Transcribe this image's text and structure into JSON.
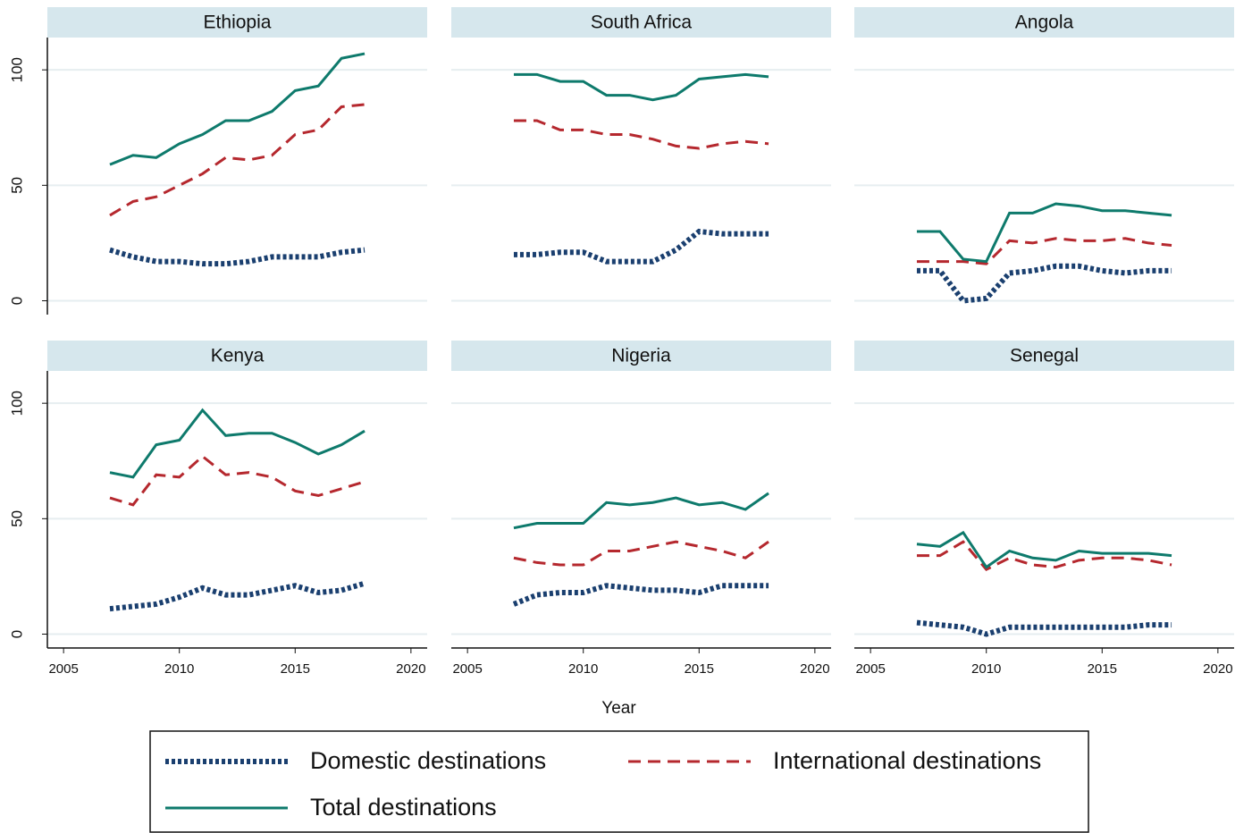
{
  "chart_data": [
    {
      "type": "line",
      "title": "Ethiopia",
      "x": [
        2007,
        2008,
        2009,
        2010,
        2011,
        2012,
        2013,
        2014,
        2015,
        2016,
        2017,
        2018
      ],
      "xlim": [
        2004.3,
        2020.7
      ],
      "xticks": [
        2005,
        2010,
        2015,
        2020
      ],
      "ylim": [
        -6,
        114
      ],
      "yticks": [
        0,
        50,
        100
      ],
      "grid": true,
      "series": [
        {
          "name": "Domestic destinations",
          "color": "#1a3f6f",
          "style": "dotted",
          "values": [
            22,
            19,
            17,
            17,
            16,
            16,
            17,
            19,
            19,
            19,
            21,
            22
          ]
        },
        {
          "name": "International destinations",
          "color": "#b5282e",
          "style": "dashed",
          "values": [
            37,
            43,
            45,
            50,
            55,
            62,
            61,
            63,
            72,
            74,
            84,
            85
          ]
        },
        {
          "name": "Total destinations",
          "color": "#0e7a6c",
          "style": "solid",
          "values": [
            59,
            63,
            62,
            68,
            72,
            78,
            78,
            82,
            91,
            93,
            105,
            107
          ]
        }
      ]
    },
    {
      "type": "line",
      "title": "South Africa",
      "x": [
        2007,
        2008,
        2009,
        2010,
        2011,
        2012,
        2013,
        2014,
        2015,
        2016,
        2017,
        2018
      ],
      "xlim": [
        2004.3,
        2020.7
      ],
      "xticks": [
        2005,
        2010,
        2015,
        2020
      ],
      "ylim": [
        -6,
        114
      ],
      "yticks": [
        0,
        50,
        100
      ],
      "grid": true,
      "series": [
        {
          "name": "Domestic destinations",
          "color": "#1a3f6f",
          "style": "dotted",
          "values": [
            20,
            20,
            21,
            21,
            17,
            17,
            17,
            22,
            30,
            29,
            29,
            29
          ]
        },
        {
          "name": "International destinations",
          "color": "#b5282e",
          "style": "dashed",
          "values": [
            78,
            78,
            74,
            74,
            72,
            72,
            70,
            67,
            66,
            68,
            69,
            68
          ]
        },
        {
          "name": "Total destinations",
          "color": "#0e7a6c",
          "style": "solid",
          "values": [
            98,
            98,
            95,
            95,
            89,
            89,
            87,
            89,
            96,
            97,
            98,
            97
          ]
        }
      ]
    },
    {
      "type": "line",
      "title": "Angola",
      "x": [
        2007,
        2008,
        2009,
        2010,
        2011,
        2012,
        2013,
        2014,
        2015,
        2016,
        2017,
        2018
      ],
      "xlim": [
        2004.3,
        2020.7
      ],
      "xticks": [
        2005,
        2010,
        2015,
        2020
      ],
      "ylim": [
        -6,
        114
      ],
      "yticks": [
        0,
        50,
        100
      ],
      "grid": true,
      "series": [
        {
          "name": "Domestic destinations",
          "color": "#1a3f6f",
          "style": "dotted",
          "values": [
            13,
            13,
            0,
            1,
            12,
            13,
            15,
            15,
            13,
            12,
            13,
            13
          ]
        },
        {
          "name": "International destinations",
          "color": "#b5282e",
          "style": "dashed",
          "values": [
            17,
            17,
            17,
            16,
            26,
            25,
            27,
            26,
            26,
            27,
            25,
            24
          ]
        },
        {
          "name": "Total destinations",
          "color": "#0e7a6c",
          "style": "solid",
          "values": [
            30,
            30,
            18,
            17,
            38,
            38,
            42,
            41,
            39,
            39,
            38,
            37
          ]
        }
      ]
    },
    {
      "type": "line",
      "title": "Kenya",
      "x": [
        2007,
        2008,
        2009,
        2010,
        2011,
        2012,
        2013,
        2014,
        2015,
        2016,
        2017,
        2018
      ],
      "xlim": [
        2004.3,
        2020.7
      ],
      "xticks": [
        2005,
        2010,
        2015,
        2020
      ],
      "ylim": [
        -6,
        114
      ],
      "yticks": [
        0,
        50,
        100
      ],
      "grid": true,
      "series": [
        {
          "name": "Domestic destinations",
          "color": "#1a3f6f",
          "style": "dotted",
          "values": [
            11,
            12,
            13,
            16,
            20,
            17,
            17,
            19,
            21,
            18,
            19,
            22
          ]
        },
        {
          "name": "International destinations",
          "color": "#b5282e",
          "style": "dashed",
          "values": [
            59,
            56,
            69,
            68,
            77,
            69,
            70,
            68,
            62,
            60,
            63,
            66
          ]
        },
        {
          "name": "Total destinations",
          "color": "#0e7a6c",
          "style": "solid",
          "values": [
            70,
            68,
            82,
            84,
            97,
            86,
            87,
            87,
            83,
            78,
            82,
            88
          ]
        }
      ]
    },
    {
      "type": "line",
      "title": "Nigeria",
      "xlabel": "Year",
      "x": [
        2007,
        2008,
        2009,
        2010,
        2011,
        2012,
        2013,
        2014,
        2015,
        2016,
        2017,
        2018
      ],
      "xlim": [
        2004.3,
        2020.7
      ],
      "xticks": [
        2005,
        2010,
        2015,
        2020
      ],
      "ylim": [
        -6,
        114
      ],
      "yticks": [
        0,
        50,
        100
      ],
      "grid": true,
      "series": [
        {
          "name": "Domestic destinations",
          "color": "#1a3f6f",
          "style": "dotted",
          "values": [
            13,
            17,
            18,
            18,
            21,
            20,
            19,
            19,
            18,
            21,
            21,
            21
          ]
        },
        {
          "name": "International destinations",
          "color": "#b5282e",
          "style": "dashed",
          "values": [
            33,
            31,
            30,
            30,
            36,
            36,
            38,
            40,
            38,
            36,
            33,
            40
          ]
        },
        {
          "name": "Total destinations",
          "color": "#0e7a6c",
          "style": "solid",
          "values": [
            46,
            48,
            48,
            48,
            57,
            56,
            57,
            59,
            56,
            57,
            54,
            61
          ]
        }
      ]
    },
    {
      "type": "line",
      "title": "Senegal",
      "x": [
        2007,
        2008,
        2009,
        2010,
        2011,
        2012,
        2013,
        2014,
        2015,
        2016,
        2017,
        2018
      ],
      "xlim": [
        2004.3,
        2020.7
      ],
      "xticks": [
        2005,
        2010,
        2015,
        2020
      ],
      "ylim": [
        -6,
        114
      ],
      "yticks": [
        0,
        50,
        100
      ],
      "grid": true,
      "series": [
        {
          "name": "Domestic destinations",
          "color": "#1a3f6f",
          "style": "dotted",
          "values": [
            5,
            4,
            3,
            0,
            3,
            3,
            3,
            3,
            3,
            3,
            4,
            4
          ]
        },
        {
          "name": "International destinations",
          "color": "#b5282e",
          "style": "dashed",
          "values": [
            34,
            34,
            40,
            28,
            33,
            30,
            29,
            32,
            33,
            33,
            32,
            30
          ]
        },
        {
          "name": "Total destinations",
          "color": "#0e7a6c",
          "style": "solid",
          "values": [
            39,
            38,
            44,
            29,
            36,
            33,
            32,
            36,
            35,
            35,
            35,
            34
          ]
        }
      ]
    }
  ]
}
